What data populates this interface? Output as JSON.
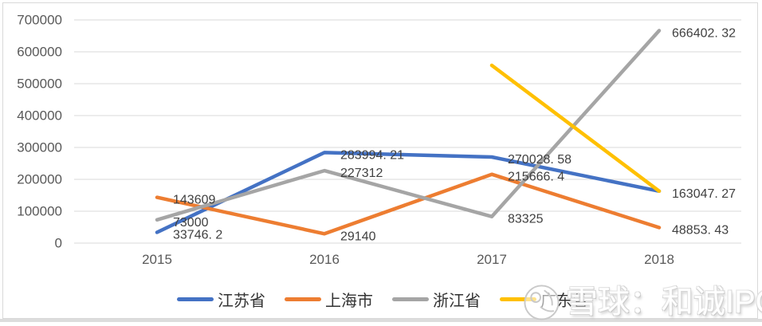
{
  "chart_data": {
    "type": "line",
    "title": "",
    "xlabel": "",
    "ylabel": "",
    "grid": true,
    "legend_position": "bottom",
    "categories": [
      "2015",
      "2016",
      "2017",
      "2018"
    ],
    "ylim": [
      0,
      700000
    ],
    "ytick_step": 100000,
    "ytick_labels": [
      "0",
      "100000",
      "200000",
      "300000",
      "400000",
      "500000",
      "600000",
      "700000"
    ],
    "series": [
      {
        "name": "江苏省",
        "color": "#4472C4",
        "values": [
          33746.2,
          283994.21,
          270028.58,
          163047.27
        ],
        "labels": [
          "33746. 2",
          "283994. 21",
          "270028. 58",
          "163047. 27"
        ]
      },
      {
        "name": "上海市",
        "color": "#ED7D31",
        "values": [
          143609,
          29140,
          215666.4,
          48853.43
        ],
        "labels": [
          "143609",
          "29140",
          "215666. 4",
          "48853. 43"
        ]
      },
      {
        "name": "浙江省",
        "color": "#A5A5A5",
        "values": [
          73000,
          227312,
          83325,
          666402.32
        ],
        "labels": [
          "73000",
          "227312",
          "83325",
          "666402. 32"
        ]
      },
      {
        "name": "广东省",
        "color": "#FFC000",
        "values": [
          null,
          null,
          557500,
          163047.27
        ],
        "labels": [
          null,
          null,
          null,
          null
        ]
      }
    ]
  },
  "colors": {
    "gridline": "#d9d9d9",
    "axis_text": "#595959",
    "data_label_text": "#404040",
    "frame_border": "#d9d9d9"
  },
  "watermark": {
    "logo_icon": "snowball-icon",
    "text": "雪球：和诚IPO"
  }
}
